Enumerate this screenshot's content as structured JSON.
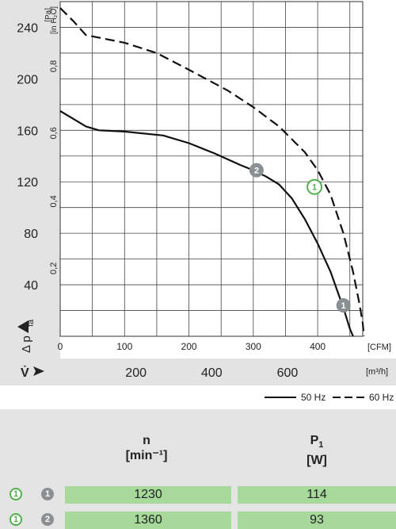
{
  "chart_data": {
    "type": "line",
    "pressure_axis": {
      "unit": "[Pa]",
      "ticks": [
        "40",
        "80",
        "120",
        "160",
        "200",
        "240"
      ],
      "range": [
        0,
        260
      ]
    },
    "inh2o_axis": {
      "unit": "[in H₂O]",
      "ticks": [
        "0,2",
        "0,4",
        "0,6",
        "0,8"
      ]
    },
    "cfm_axis": {
      "unit": "[CFM]",
      "ticks": [
        "0",
        "100",
        "200",
        "300",
        "400"
      ],
      "range": [
        0,
        470
      ]
    },
    "m3h_axis": {
      "unit": "[m³/h]",
      "ticks": [
        "200",
        "400",
        "600"
      ]
    },
    "y_symbol": "Δ p",
    "y_subscript": "fa",
    "x_symbol": "V̇",
    "series": [
      {
        "name": "50 Hz",
        "dash": "solid",
        "points": [
          [
            0,
            175
          ],
          [
            20,
            169
          ],
          [
            40,
            163
          ],
          [
            60,
            160
          ],
          [
            100,
            159
          ],
          [
            160,
            156
          ],
          [
            200,
            150
          ],
          [
            240,
            142
          ],
          [
            280,
            133
          ],
          [
            300,
            129
          ],
          [
            320,
            124
          ],
          [
            340,
            118
          ],
          [
            360,
            107
          ],
          [
            380,
            91
          ],
          [
            400,
            72
          ],
          [
            420,
            50
          ],
          [
            440,
            22
          ],
          [
            450,
            6
          ],
          [
            455,
            0
          ]
        ]
      },
      {
        "name": "60 Hz",
        "dash": "dashed",
        "points": [
          [
            0,
            255
          ],
          [
            20,
            245
          ],
          [
            40,
            234
          ],
          [
            60,
            232
          ],
          [
            100,
            228
          ],
          [
            150,
            220
          ],
          [
            200,
            207
          ],
          [
            260,
            191
          ],
          [
            300,
            178
          ],
          [
            340,
            163
          ],
          [
            380,
            143
          ],
          [
            400,
            129
          ],
          [
            420,
            110
          ],
          [
            440,
            80
          ],
          [
            455,
            50
          ],
          [
            465,
            25
          ],
          [
            470,
            10
          ],
          [
            472,
            0
          ]
        ]
      }
    ],
    "markers": [
      {
        "label": "1",
        "x": 440,
        "y": 24,
        "style": "filled"
      },
      {
        "label": "2",
        "x": 305,
        "y": 129,
        "style": "filled"
      },
      {
        "label": "1",
        "x": 395,
        "y": 116,
        "style": "open"
      }
    ],
    "legend": {
      "position": "bottom-right"
    },
    "grid": true
  },
  "table": {
    "col1_symbol": "n",
    "col1_unit": "[min⁻¹]",
    "col2_symbol": "P",
    "col2_sub": "1",
    "col2_unit": "[W]",
    "rows": [
      {
        "open_marker": "1",
        "filled_marker": "1",
        "n": "1230",
        "p1": "114"
      },
      {
        "open_marker": "1",
        "filled_marker": "2",
        "n": "1360",
        "p1": "93"
      }
    ]
  }
}
